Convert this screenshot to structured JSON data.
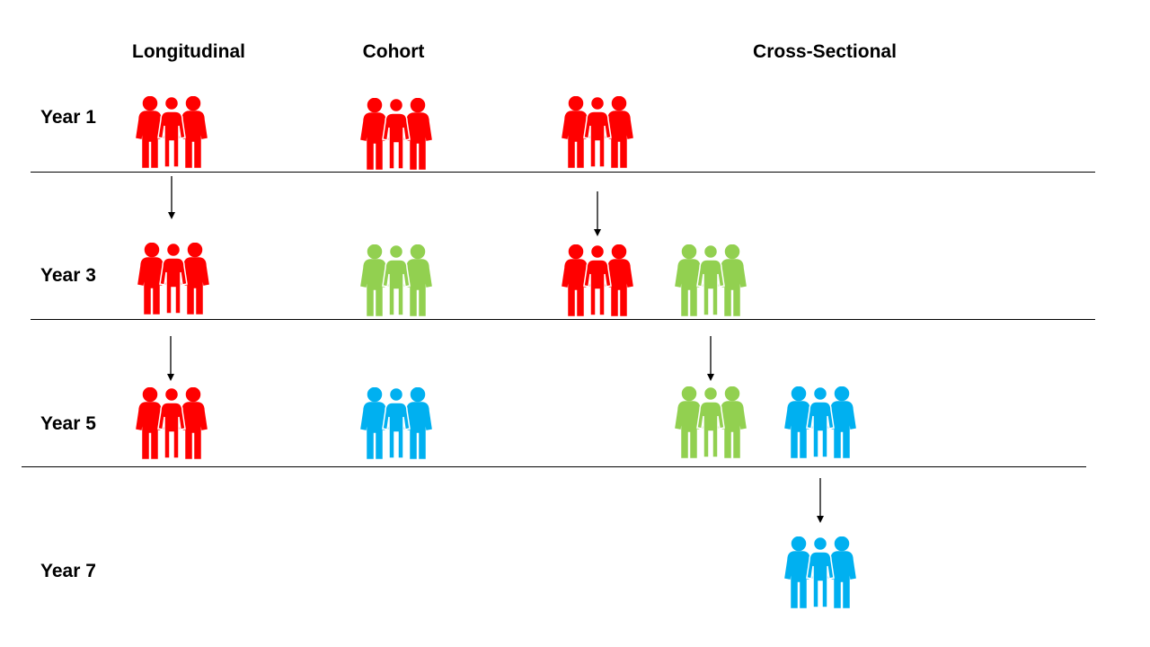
{
  "columns": [
    "Longitudinal",
    "Cohort",
    "Cross-Sectional"
  ],
  "rows": [
    "Year 1",
    "Year 3",
    "Year 5",
    "Year 7"
  ],
  "colors": {
    "red": "#ff0000",
    "green": "#92d050",
    "blue": "#00b0f0",
    "line": "#000000"
  },
  "icons": {
    "group": "people-group-icon",
    "arrow": "arrow-down-icon"
  }
}
